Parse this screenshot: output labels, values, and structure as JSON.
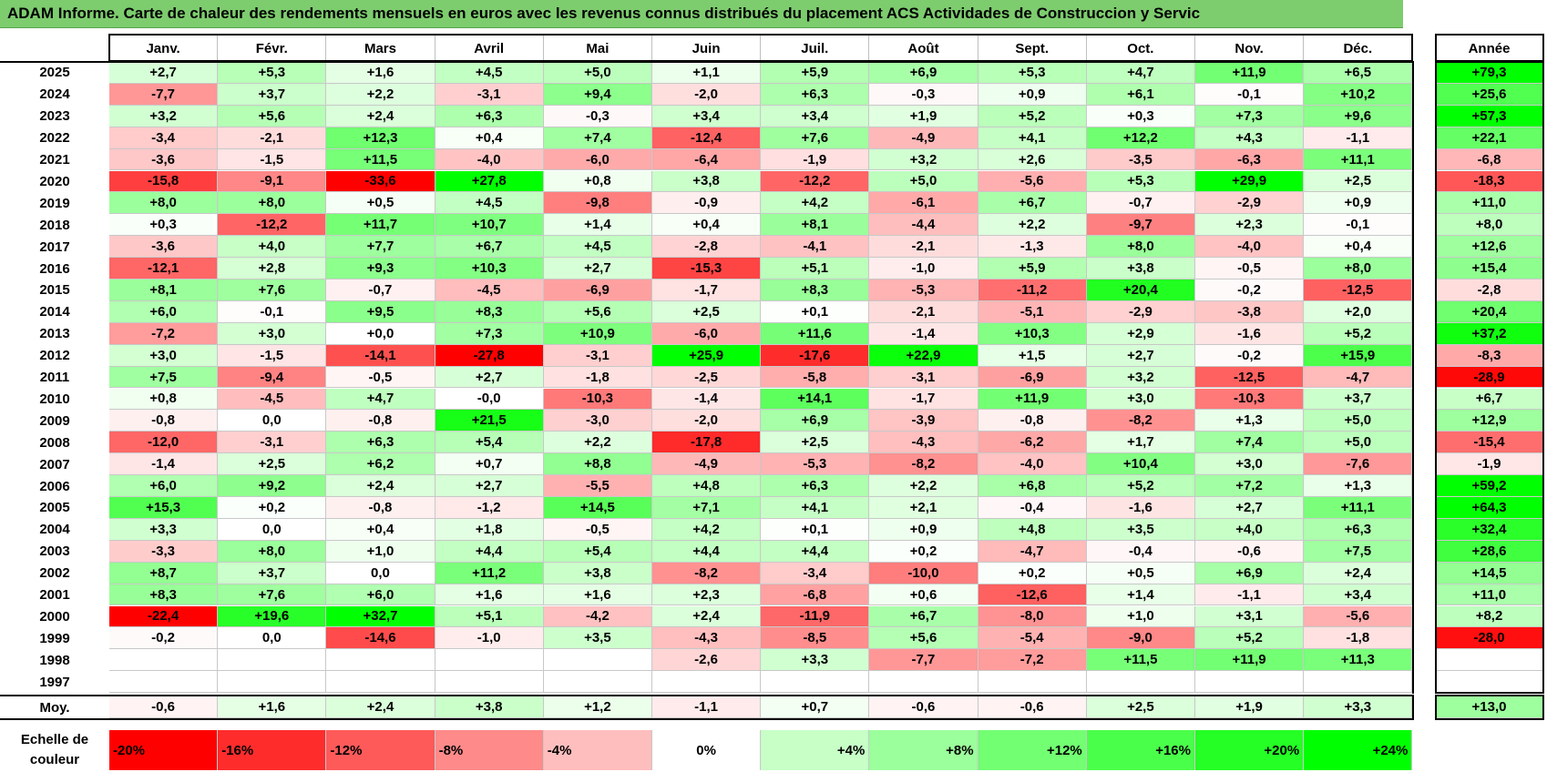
{
  "title": "ADAM Informe. Carte de chaleur des rendements mensuels en euros avec les revenus connus distribués du placement ACS Actividades de Construccion y Servic",
  "chart_data": {
    "type": "heatmap",
    "title": "ADAM Informe. Carte de chaleur des rendements mensuels en euros avec les revenus connus distribués du placement ACS Actividades de Construccion y Servic",
    "months": [
      "Janv.",
      "Févr.",
      "Mars",
      "Avril",
      "Mai",
      "Juin",
      "Juil.",
      "Août",
      "Sept.",
      "Oct.",
      "Nov.",
      "Déc."
    ],
    "annual_header": "Année",
    "rows": [
      {
        "year": "2025",
        "values": [
          "+2,7",
          "+5,3",
          "+1,6",
          "+4,5",
          "+5,0",
          "+1,1",
          "+5,9",
          "+6,9",
          "+5,3",
          "+4,7",
          "+11,9",
          "+6,5"
        ],
        "annual": "+79,3"
      },
      {
        "year": "2024",
        "values": [
          "-7,7",
          "+3,7",
          "+2,2",
          "-3,1",
          "+9,4",
          "-2,0",
          "+6,3",
          "-0,3",
          "+0,9",
          "+6,1",
          "-0,1",
          "+10,2"
        ],
        "annual": "+25,6"
      },
      {
        "year": "2023",
        "values": [
          "+3,2",
          "+5,6",
          "+2,4",
          "+6,3",
          "-0,3",
          "+3,4",
          "+3,4",
          "+1,9",
          "+5,2",
          "+0,3",
          "+7,3",
          "+9,6"
        ],
        "annual": "+57,3"
      },
      {
        "year": "2022",
        "values": [
          "-3,4",
          "-2,1",
          "+12,3",
          "+0,4",
          "+7,4",
          "-12,4",
          "+7,6",
          "-4,9",
          "+4,1",
          "+12,2",
          "+4,3",
          "-1,1"
        ],
        "annual": "+22,1"
      },
      {
        "year": "2021",
        "values": [
          "-3,6",
          "-1,5",
          "+11,5",
          "-4,0",
          "-6,0",
          "-6,4",
          "-1,9",
          "+3,2",
          "+2,6",
          "-3,5",
          "-6,3",
          "+11,1"
        ],
        "annual": "-6,8"
      },
      {
        "year": "2020",
        "values": [
          "-15,8",
          "-9,1",
          "-33,6",
          "+27,8",
          "+0,8",
          "+3,8",
          "-12,2",
          "+5,0",
          "-5,6",
          "+5,3",
          "+29,9",
          "+2,5"
        ],
        "annual": "-18,3"
      },
      {
        "year": "2019",
        "values": [
          "+8,0",
          "+8,0",
          "+0,5",
          "+4,5",
          "-9,8",
          "-0,9",
          "+4,2",
          "-6,1",
          "+6,7",
          "-0,7",
          "-2,9",
          "+0,9"
        ],
        "annual": "+11,0"
      },
      {
        "year": "2018",
        "values": [
          "+0,3",
          "-12,2",
          "+11,7",
          "+10,7",
          "+1,4",
          "+0,4",
          "+8,1",
          "-4,4",
          "+2,2",
          "-9,7",
          "+2,3",
          "-0,1"
        ],
        "annual": "+8,0"
      },
      {
        "year": "2017",
        "values": [
          "-3,6",
          "+4,0",
          "+7,7",
          "+6,7",
          "+4,5",
          "-2,8",
          "-4,1",
          "-2,1",
          "-1,3",
          "+8,0",
          "-4,0",
          "+0,4"
        ],
        "annual": "+12,6"
      },
      {
        "year": "2016",
        "values": [
          "-12,1",
          "+2,8",
          "+9,3",
          "+10,3",
          "+2,7",
          "-15,3",
          "+5,1",
          "-1,0",
          "+5,9",
          "+3,8",
          "-0,5",
          "+8,0"
        ],
        "annual": "+15,4"
      },
      {
        "year": "2015",
        "values": [
          "+8,1",
          "+7,6",
          "-0,7",
          "-4,5",
          "-6,9",
          "-1,7",
          "+8,3",
          "-5,3",
          "-11,2",
          "+20,4",
          "-0,2",
          "-12,5"
        ],
        "annual": "-2,8"
      },
      {
        "year": "2014",
        "values": [
          "+6,0",
          "-0,1",
          "+9,5",
          "+8,3",
          "+5,6",
          "+2,5",
          "+0,1",
          "-2,1",
          "-5,1",
          "-2,9",
          "-3,8",
          "+2,0"
        ],
        "annual": "+20,4"
      },
      {
        "year": "2013",
        "values": [
          "-7,2",
          "+3,0",
          "+0,0",
          "+7,3",
          "+10,9",
          "-6,0",
          "+11,6",
          "-1,4",
          "+10,3",
          "+2,9",
          "-1,6",
          "+5,2"
        ],
        "annual": "+37,2"
      },
      {
        "year": "2012",
        "values": [
          "+3,0",
          "-1,5",
          "-14,1",
          "-27,8",
          "-3,1",
          "+25,9",
          "-17,6",
          "+22,9",
          "+1,5",
          "+2,7",
          "-0,2",
          "+15,9"
        ],
        "annual": "-8,3"
      },
      {
        "year": "2011",
        "values": [
          "+7,5",
          "-9,4",
          "-0,5",
          "+2,7",
          "-1,8",
          "-2,5",
          "-5,8",
          "-3,1",
          "-6,9",
          "+3,2",
          "-12,5",
          "-4,7"
        ],
        "annual": "-28,9"
      },
      {
        "year": "2010",
        "values": [
          "+0,8",
          "-4,5",
          "+4,7",
          "-0,0",
          "-10,3",
          "-1,4",
          "+14,1",
          "-1,7",
          "+11,9",
          "+3,0",
          "-10,3",
          "+3,7"
        ],
        "annual": "+6,7"
      },
      {
        "year": "2009",
        "values": [
          "-0,8",
          "0,0",
          "-0,8",
          "+21,5",
          "-3,0",
          "-2,0",
          "+6,9",
          "-3,9",
          "-0,8",
          "-8,2",
          "+1,3",
          "+5,0"
        ],
        "annual": "+12,9"
      },
      {
        "year": "2008",
        "values": [
          "-12,0",
          "-3,1",
          "+6,3",
          "+5,4",
          "+2,2",
          "-17,8",
          "+2,5",
          "-4,3",
          "-6,2",
          "+1,7",
          "+7,4",
          "+5,0"
        ],
        "annual": "-15,4"
      },
      {
        "year": "2007",
        "values": [
          "-1,4",
          "+2,5",
          "+6,2",
          "+0,7",
          "+8,8",
          "-4,9",
          "-5,3",
          "-8,2",
          "-4,0",
          "+10,4",
          "+3,0",
          "-7,6"
        ],
        "annual": "-1,9"
      },
      {
        "year": "2006",
        "values": [
          "+6,0",
          "+9,2",
          "+2,4",
          "+2,7",
          "-5,5",
          "+4,8",
          "+6,3",
          "+2,2",
          "+6,8",
          "+5,2",
          "+7,2",
          "+1,3"
        ],
        "annual": "+59,2"
      },
      {
        "year": "2005",
        "values": [
          "+15,3",
          "+0,2",
          "-0,8",
          "-1,2",
          "+14,5",
          "+7,1",
          "+4,1",
          "+2,1",
          "-0,4",
          "-1,6",
          "+2,7",
          "+11,1"
        ],
        "annual": "+64,3"
      },
      {
        "year": "2004",
        "values": [
          "+3,3",
          "0,0",
          "+0,4",
          "+1,8",
          "-0,5",
          "+4,2",
          "+0,1",
          "+0,9",
          "+4,8",
          "+3,5",
          "+4,0",
          "+6,3"
        ],
        "annual": "+32,4"
      },
      {
        "year": "2003",
        "values": [
          "-3,3",
          "+8,0",
          "+1,0",
          "+4,4",
          "+5,4",
          "+4,4",
          "+4,4",
          "+0,2",
          "-4,7",
          "-0,4",
          "-0,6",
          "+7,5"
        ],
        "annual": "+28,6"
      },
      {
        "year": "2002",
        "values": [
          "+8,7",
          "+3,7",
          "0,0",
          "+11,2",
          "+3,8",
          "-8,2",
          "-3,4",
          "-10,0",
          "+0,2",
          "+0,5",
          "+6,9",
          "+2,4"
        ],
        "annual": "+14,5"
      },
      {
        "year": "2001",
        "values": [
          "+8,3",
          "+7,6",
          "+6,0",
          "+1,6",
          "+1,6",
          "+2,3",
          "-6,8",
          "+0,6",
          "-12,6",
          "+1,4",
          "-1,1",
          "+3,4"
        ],
        "annual": "+11,0"
      },
      {
        "year": "2000",
        "values": [
          "-22,4",
          "+19,6",
          "+32,7",
          "+5,1",
          "-4,2",
          "+2,4",
          "-11,9",
          "+6,7",
          "-8,0",
          "+1,0",
          "+3,1",
          "-5,6"
        ],
        "annual": "+8,2"
      },
      {
        "year": "1999",
        "values": [
          "-0,2",
          "0,0",
          "-14,6",
          "-1,0",
          "+3,5",
          "-4,3",
          "-8,5",
          "+5,6",
          "-5,4",
          "-9,0",
          "+5,2",
          "-1,8"
        ],
        "annual": "-28,0"
      },
      {
        "year": "1998",
        "values": [
          "",
          "",
          "",
          "",
          "",
          "-2,6",
          "+3,3",
          "-7,7",
          "-7,2",
          "+11,5",
          "+11,9",
          "+11,3"
        ],
        "annual": ""
      },
      {
        "year": "1997",
        "values": [
          "",
          "",
          "",
          "",
          "",
          "",
          "",
          "",
          "",
          "",
          "",
          ""
        ],
        "annual": ""
      }
    ],
    "average": {
      "label": "Moy.",
      "values": [
        "-0,6",
        "+1,6",
        "+2,4",
        "+3,8",
        "+1,2",
        "-1,1",
        "+0,7",
        "-0,6",
        "-0,6",
        "+2,5",
        "+1,9",
        "+3,3"
      ],
      "annual": "+13,0"
    },
    "scale": {
      "label": "Echelle de couleur",
      "steps": [
        {
          "label": "-20%",
          "value": -20
        },
        {
          "label": "-16%",
          "value": -16
        },
        {
          "label": "-12%",
          "value": -12
        },
        {
          "label": "-8%",
          "value": -8
        },
        {
          "label": "-4%",
          "value": -4
        },
        {
          "label": "0%",
          "value": 0
        },
        {
          "label": "+4%",
          "value": 4
        },
        {
          "label": "+8%",
          "value": 8
        },
        {
          "label": "+12%",
          "value": 12
        },
        {
          "label": "+16%",
          "value": 16
        },
        {
          "label": "+20%",
          "value": 20
        },
        {
          "label": "+24%",
          "value": 24
        }
      ]
    }
  }
}
